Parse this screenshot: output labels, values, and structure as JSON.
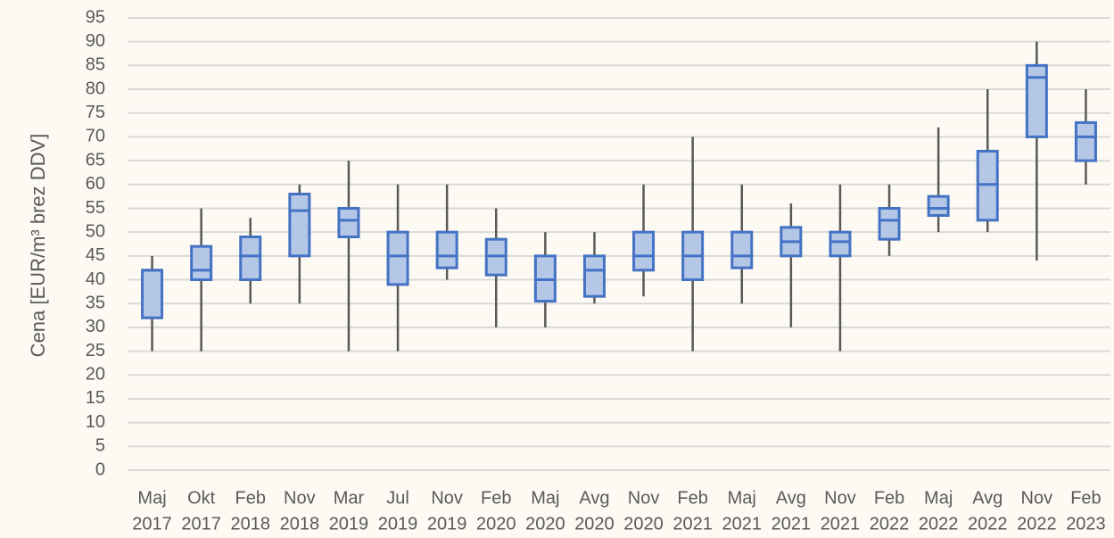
{
  "chart_data": {
    "type": "box",
    "y_label": "Cena [EUR/m³ brez DDV]",
    "categories": [
      [
        "Maj",
        "2017"
      ],
      [
        "Okt",
        "2017"
      ],
      [
        "Feb",
        "2018"
      ],
      [
        "Nov",
        "2018"
      ],
      [
        "Mar",
        "2019"
      ],
      [
        "Jul",
        "2019"
      ],
      [
        "Nov",
        "2019"
      ],
      [
        "Feb",
        "2020"
      ],
      [
        "Maj",
        "2020"
      ],
      [
        "Avg",
        "2020"
      ],
      [
        "Nov",
        "2020"
      ],
      [
        "Feb",
        "2021"
      ],
      [
        "Maj",
        "2021"
      ],
      [
        "Avg",
        "2021"
      ],
      [
        "Nov",
        "2021"
      ],
      [
        "Feb",
        "2022"
      ],
      [
        "Maj",
        "2022"
      ],
      [
        "Avg",
        "2022"
      ],
      [
        "Nov",
        "2022"
      ],
      [
        "Feb",
        "2023"
      ]
    ],
    "min": [
      25,
      25,
      35,
      35,
      25,
      25,
      40,
      30,
      30,
      35,
      36.5,
      25,
      35,
      30,
      25,
      45,
      50,
      50,
      44,
      60
    ],
    "q1": [
      32,
      40,
      40,
      45,
      49,
      39,
      42.5,
      41,
      35.5,
      36.5,
      42,
      40,
      42.5,
      45,
      45,
      48.5,
      53.5,
      52.5,
      70,
      65
    ],
    "median": [
      42,
      42,
      45,
      54.5,
      52.5,
      45,
      45,
      45,
      40,
      42,
      45,
      45,
      45,
      48,
      48,
      52.5,
      55,
      60,
      82.5,
      70
    ],
    "q3": [
      42,
      47,
      49,
      58,
      55,
      50,
      50,
      48.5,
      45,
      45,
      50,
      50,
      50,
      51,
      50,
      55,
      57.5,
      67,
      85,
      73
    ],
    "max": [
      45,
      55,
      53,
      60,
      65,
      60,
      60,
      55,
      50,
      50,
      60,
      70,
      60,
      56,
      60,
      60,
      72,
      80,
      90,
      80
    ],
    "color": "#4472c4",
    "fill": "#b4c7e7",
    "whisker_color": "#595959",
    "ylim": [
      0,
      95
    ],
    "yticks": [
      0,
      5,
      10,
      15,
      20,
      25,
      30,
      35,
      40,
      45,
      50,
      55,
      60,
      65,
      70,
      75,
      80,
      85,
      90,
      95
    ],
    "grid": true
  }
}
